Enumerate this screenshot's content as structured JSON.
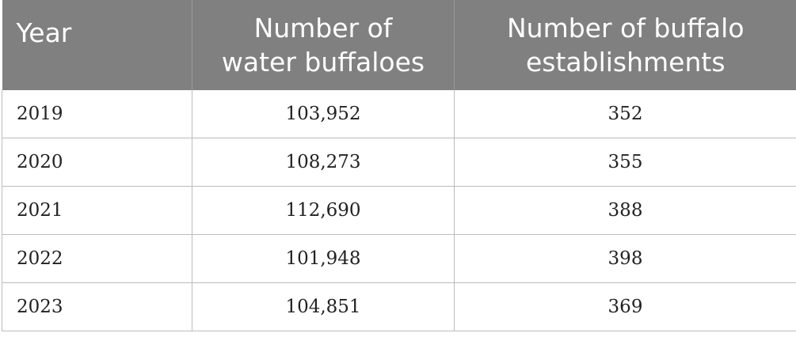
{
  "table": {
    "headers": [
      "Year",
      "Number of water buffaloes",
      "Number of buffalo establishments"
    ],
    "header_lines": [
      [
        "Year"
      ],
      [
        "Number of",
        "water buffaloes"
      ],
      [
        "Number of buffalo",
        "establishments"
      ]
    ],
    "rows": [
      [
        "2019",
        "103,952",
        "352"
      ],
      [
        "2020",
        "108,273",
        "355"
      ],
      [
        "2021",
        "112,690",
        "388"
      ],
      [
        "2022",
        "101,948",
        "398"
      ],
      [
        "2023",
        "104,851",
        "369"
      ]
    ]
  },
  "colors": {
    "header_bg": "#7f807f",
    "header_text": "#ffffff",
    "border": "#bcbcbc"
  }
}
